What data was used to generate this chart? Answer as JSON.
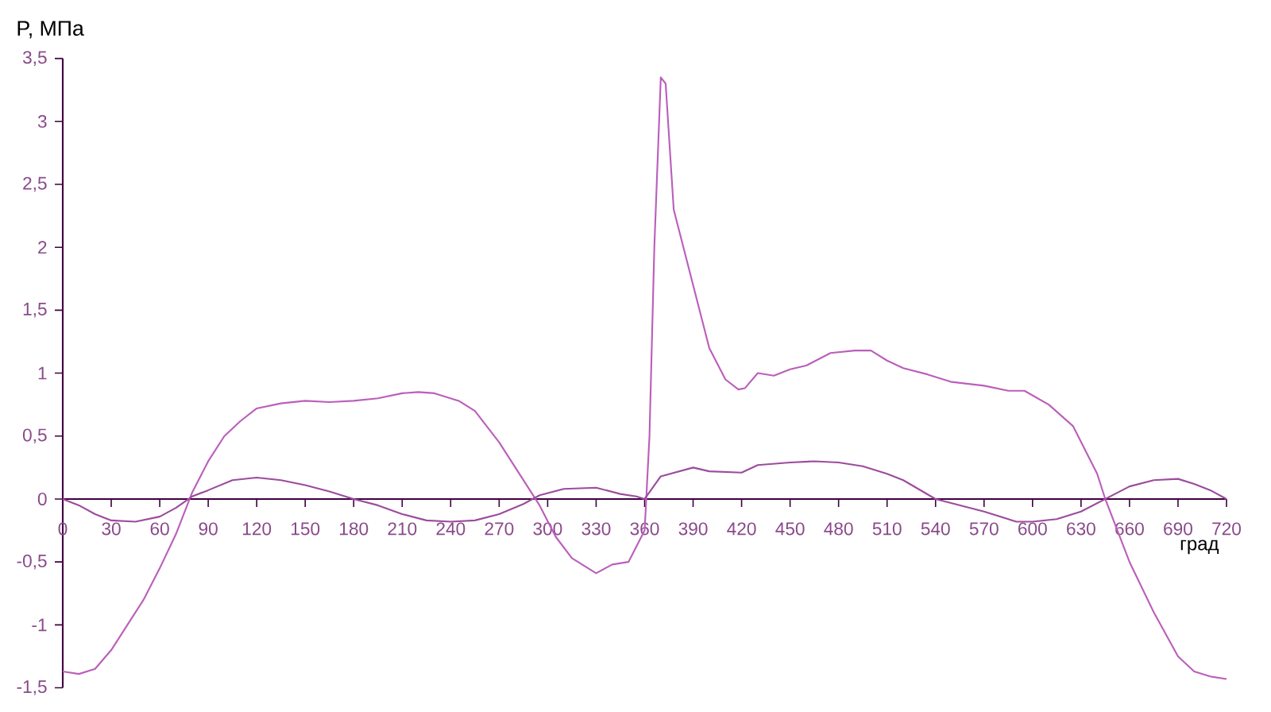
{
  "chart_data": {
    "type": "line",
    "xlabel": "град",
    "ylabel": "P,  МПа",
    "xlim": [
      0,
      720
    ],
    "xticks": [
      0,
      30,
      60,
      90,
      120,
      150,
      180,
      210,
      240,
      270,
      300,
      330,
      360,
      390,
      420,
      450,
      480,
      510,
      540,
      570,
      600,
      630,
      660,
      690,
      720
    ],
    "ylim": [
      -1.5,
      3.5
    ],
    "yticks": [
      {
        "value": -1.5,
        "label": "-1,5"
      },
      -1,
      {
        "value": -0.5,
        "label": "-0,5"
      },
      0,
      {
        "value": 0.5,
        "label": "0,5"
      },
      1,
      {
        "value": 1.5,
        "label": "1,5"
      },
      2,
      {
        "value": 2.5,
        "label": "2,5"
      },
      3,
      {
        "value": 3.5,
        "label": "3,5"
      }
    ],
    "series": [
      {
        "color": "#bb5fbb",
        "x": [
          0,
          10,
          20,
          30,
          40,
          50,
          60,
          70,
          80,
          90,
          100,
          110,
          120,
          135,
          150,
          165,
          180,
          195,
          210,
          220,
          230,
          245,
          255,
          270,
          285,
          295,
          305,
          315,
          330,
          340,
          350,
          360,
          363,
          366,
          370,
          373,
          378,
          390,
          400,
          410,
          418,
          422,
          430,
          440,
          450,
          460,
          475,
          490,
          500,
          510,
          520,
          535,
          550,
          570,
          585,
          595,
          610,
          625,
          640,
          645,
          660,
          675,
          690,
          700,
          710,
          720
        ],
        "values": [
          -1.37,
          -1.39,
          -1.35,
          -1.2,
          -1.0,
          -0.8,
          -0.55,
          -0.28,
          0.05,
          0.3,
          0.5,
          0.62,
          0.72,
          0.76,
          0.78,
          0.77,
          0.78,
          0.8,
          0.84,
          0.85,
          0.84,
          0.78,
          0.7,
          0.45,
          0.15,
          -0.05,
          -0.3,
          -0.47,
          -0.59,
          -0.52,
          -0.5,
          -0.25,
          0.5,
          2.0,
          3.35,
          3.3,
          2.3,
          1.7,
          1.2,
          0.95,
          0.87,
          0.88,
          1.0,
          0.98,
          1.03,
          1.06,
          1.16,
          1.18,
          1.18,
          1.1,
          1.04,
          0.99,
          0.93,
          0.9,
          0.86,
          0.86,
          0.75,
          0.58,
          0.2,
          0.0,
          -0.5,
          -0.9,
          -1.25,
          -1.37,
          -1.41,
          -1.43
        ]
      },
      {
        "color": "#9c4c9c",
        "x": [
          0,
          10,
          20,
          30,
          45,
          60,
          70,
          80,
          90,
          105,
          120,
          135,
          150,
          165,
          180,
          195,
          210,
          225,
          240,
          255,
          270,
          285,
          295,
          310,
          330,
          345,
          355,
          360,
          370,
          390,
          400,
          420,
          430,
          450,
          465,
          480,
          495,
          510,
          520,
          540,
          570,
          590,
          600,
          615,
          630,
          645,
          660,
          675,
          690,
          700,
          710,
          720
        ],
        "values": [
          0,
          -0.05,
          -0.12,
          -0.17,
          -0.18,
          -0.14,
          -0.07,
          0.02,
          0.07,
          0.15,
          0.17,
          0.15,
          0.11,
          0.06,
          0.0,
          -0.05,
          -0.12,
          -0.17,
          -0.18,
          -0.17,
          -0.12,
          -0.04,
          0.03,
          0.08,
          0.09,
          0.04,
          0.02,
          0,
          0.18,
          0.25,
          0.22,
          0.21,
          0.27,
          0.29,
          0.3,
          0.29,
          0.26,
          0.2,
          0.15,
          0.0,
          -0.1,
          -0.18,
          -0.18,
          -0.16,
          -0.1,
          0,
          0.1,
          0.15,
          0.16,
          0.12,
          0.07,
          0
        ]
      }
    ]
  }
}
